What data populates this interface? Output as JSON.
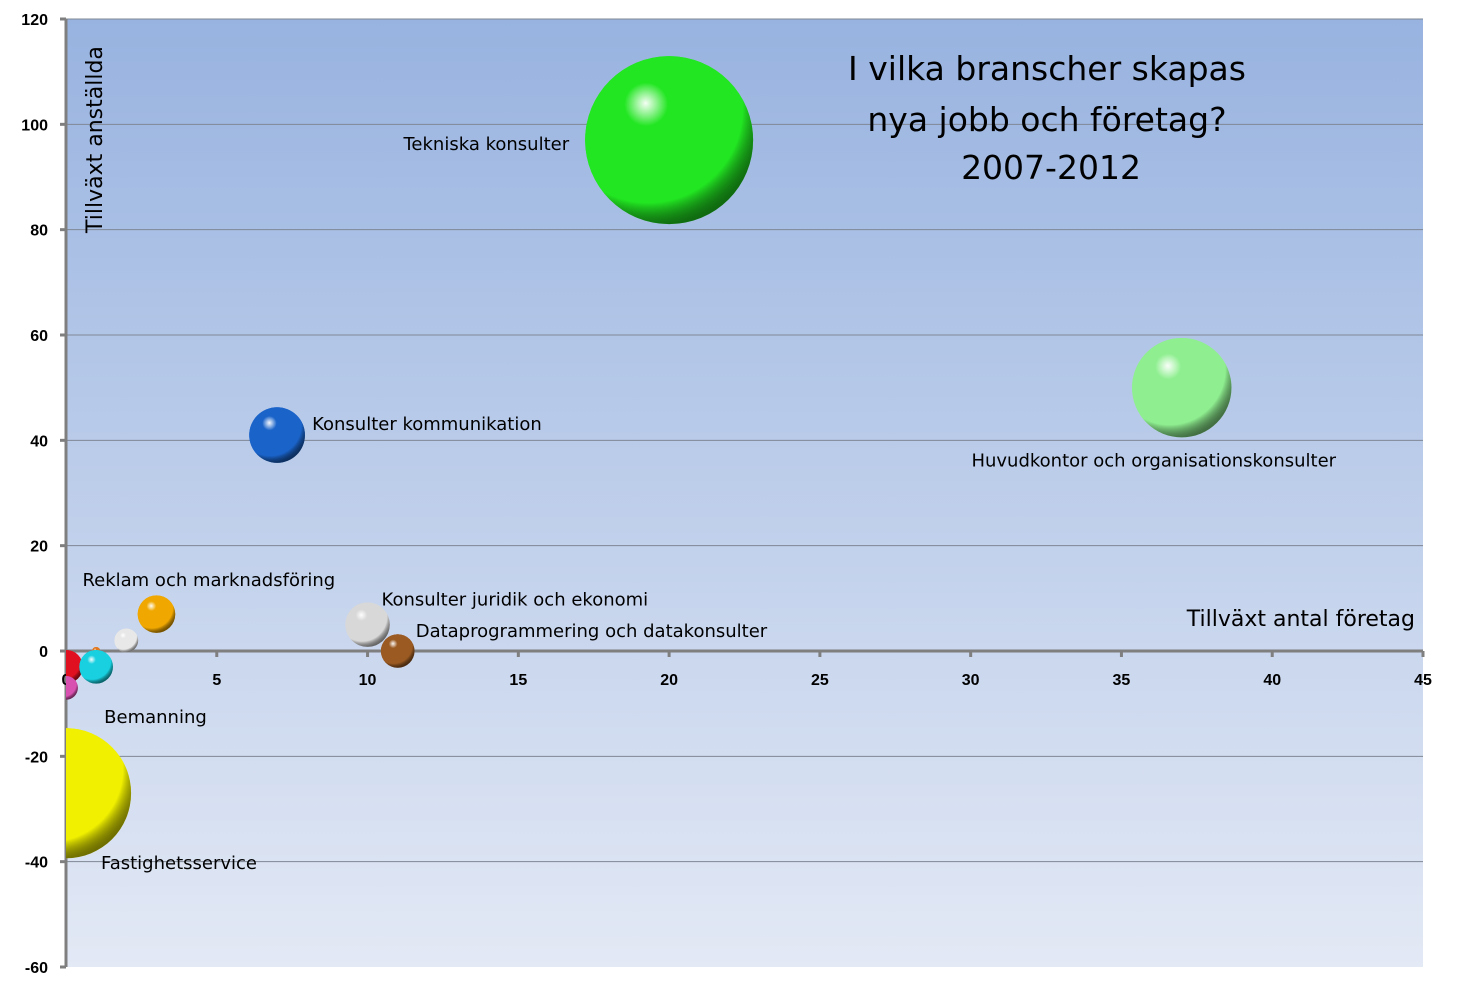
{
  "chart_data": {
    "type": "bubble",
    "title": [
      "I vilka branscher skapas",
      "nya jobb och företag?",
      "2007-2012"
    ],
    "xlabel": "Tillväxt antal företag",
    "ylabel": "Tillväxt anställda",
    "xlim": [
      0,
      45
    ],
    "ylim": [
      -60,
      120
    ],
    "xticks": [
      0,
      5,
      10,
      15,
      20,
      25,
      30,
      35,
      40,
      45
    ],
    "yticks": [
      -60,
      -40,
      -20,
      0,
      20,
      40,
      60,
      80,
      100,
      120
    ],
    "grid": true,
    "points": [
      {
        "label": "Tekniska konsulter",
        "x": 20,
        "y": 97,
        "size": 100,
        "color": "#22e622"
      },
      {
        "label": "Huvudkontor och organisationskonsulter",
        "x": 37,
        "y": 50,
        "size": 35,
        "color": "#8fef90"
      },
      {
        "label": "Konsulter kommunikation",
        "x": 7,
        "y": 41,
        "size": 11,
        "color": "#1a63c9"
      },
      {
        "label": "Reklam och marknadsföring",
        "x": 3,
        "y": 7,
        "size": 5,
        "color": "#f0a800"
      },
      {
        "label": "Konsulter juridik och ekonomi",
        "x": 10,
        "y": 5,
        "size": 7,
        "color": "#d8d8d8"
      },
      {
        "label": "Dataprogrammering och datakonsulter",
        "x": 11,
        "y": 0,
        "size": 4,
        "color": "#9a5a22"
      },
      {
        "label": "",
        "x": 2,
        "y": 2,
        "size": 2,
        "color": "#e8e8e8"
      },
      {
        "label": "",
        "x": 1,
        "y": 0,
        "size": 0.2,
        "color": "#e07820"
      },
      {
        "label": "",
        "x": 0,
        "y": -3,
        "size": 4,
        "color": "#e01020"
      },
      {
        "label": "",
        "x": 0,
        "y": -7,
        "size": 2,
        "color": "#d850b0"
      },
      {
        "label": "Bemanning",
        "x": 1,
        "y": -3,
        "size": 4,
        "color": "#18d0e0"
      },
      {
        "label": "Fastighetsservice",
        "x": 0,
        "y": -27,
        "size": 60,
        "color": "#f0f000"
      }
    ]
  }
}
